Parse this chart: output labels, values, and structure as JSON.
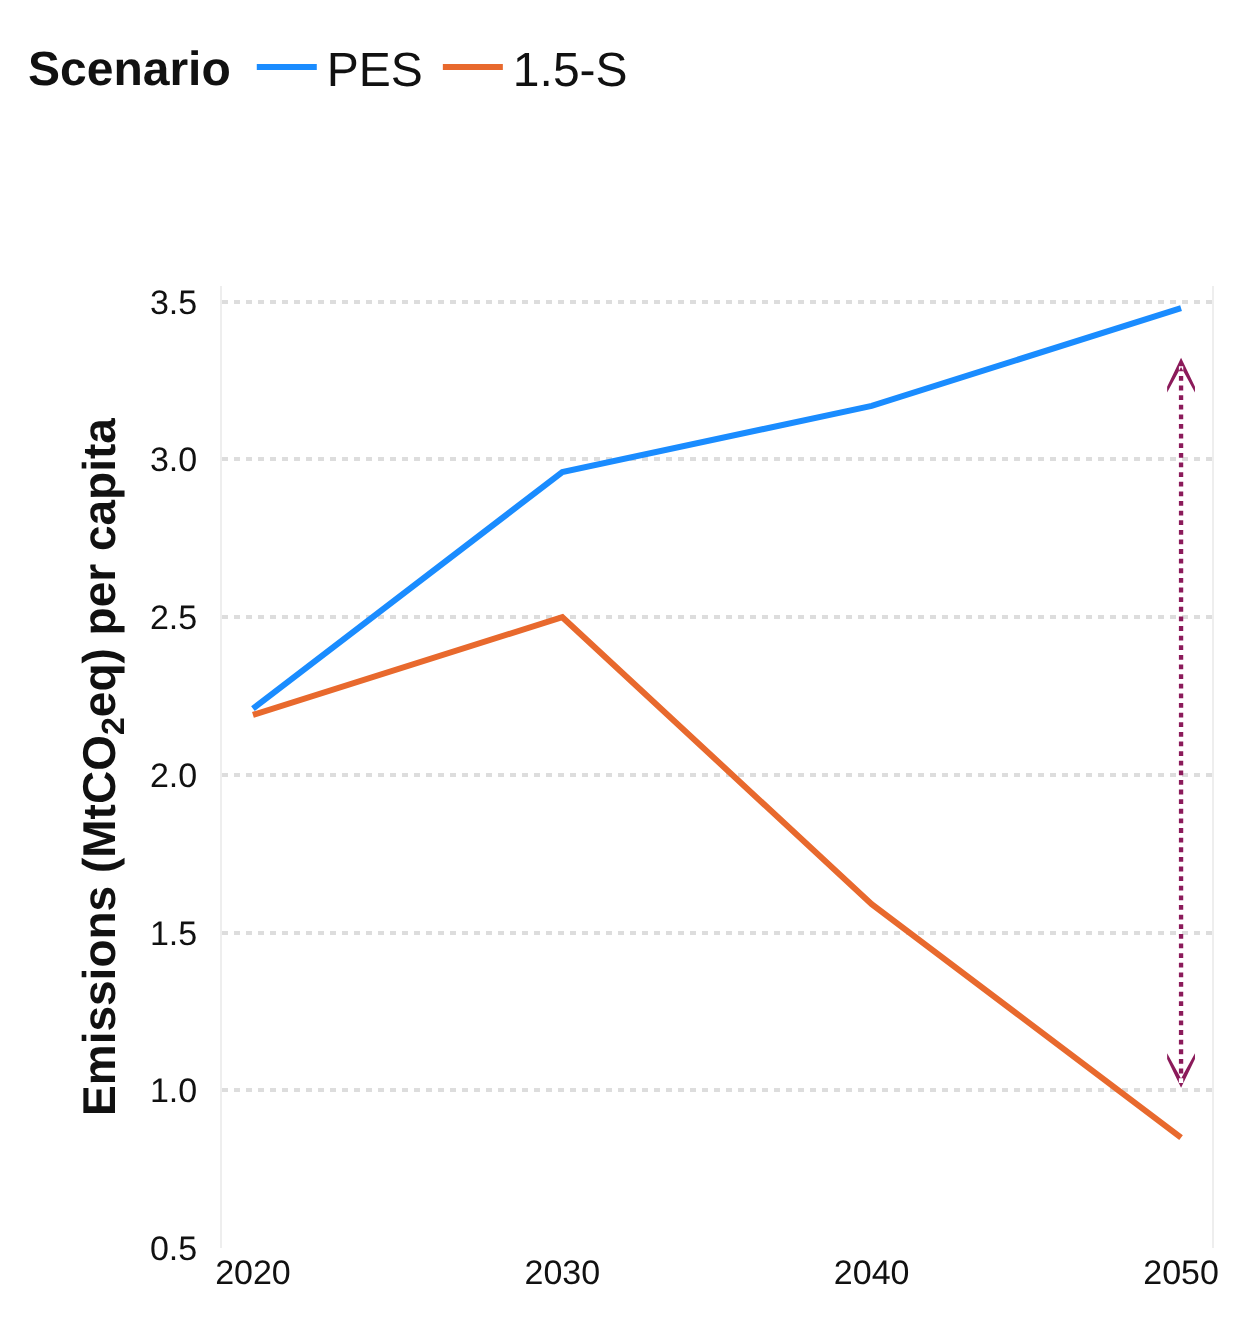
{
  "chart_data": {
    "type": "line",
    "legend_title": "Scenario",
    "ylabel": "Emissions (MtCO$_{2}$eq) per capita",
    "x": [
      2020,
      2030,
      2040,
      2050
    ],
    "series": [
      {
        "name": "PES",
        "color": "#1a8cff",
        "values": [
          2.21,
          2.96,
          3.17,
          3.48
        ]
      },
      {
        "name": "1.5-S",
        "color": "#e8692d",
        "values": [
          2.19,
          2.5,
          1.59,
          0.85
        ]
      }
    ],
    "xlim": [
      2019,
      2051
    ],
    "xticks": [
      2020,
      2030,
      2040,
      2050
    ],
    "ylim": [
      0.5,
      3.55
    ],
    "yticks": [
      0.5,
      {
        "value": 1,
        "label": "1.0"
      },
      1.5,
      {
        "value": 2,
        "label": "2.0"
      },
      2.5,
      {
        "value": 3,
        "label": "3.0"
      },
      3.5
    ],
    "grid": "y",
    "legend": "top left",
    "marker": "none",
    "line_style": "solid"
  }
}
